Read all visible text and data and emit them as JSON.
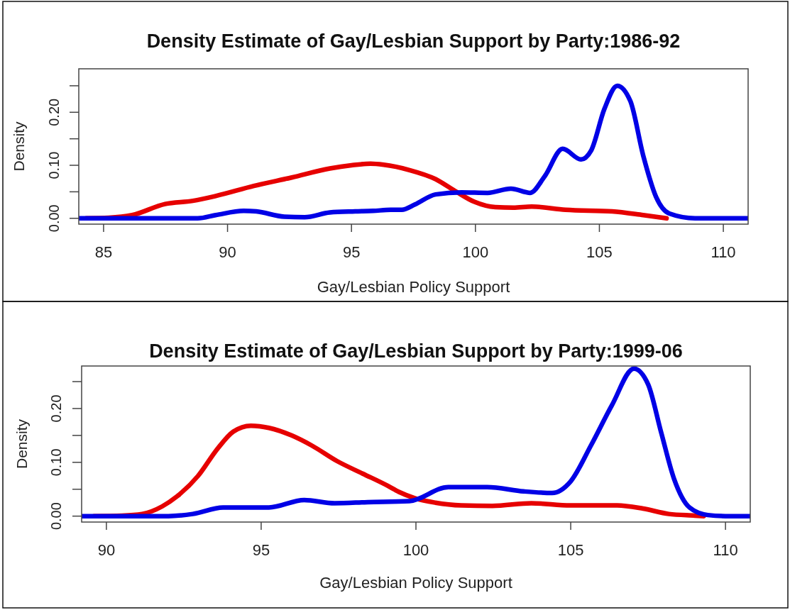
{
  "chart_data": [
    {
      "type": "line",
      "title": "Density Estimate of Gay/Lesbian Support by Party:1986-92",
      "xlabel": "Gay/Lesbian Policy Support",
      "ylabel": "Density",
      "xlim": [
        84,
        111
      ],
      "ylim": [
        -0.011,
        0.282
      ],
      "xticks": [
        85,
        90,
        95,
        100,
        105,
        110
      ],
      "yticks": [
        {
          "value": 0,
          "label": "0.00"
        },
        {
          "value": 0.05,
          "label": null
        },
        {
          "value": 0.1,
          "label": "0.10"
        },
        {
          "value": 0.15,
          "label": null
        },
        {
          "value": 0.2,
          "label": "0.20"
        },
        {
          "value": 0.25,
          "label": null
        }
      ],
      "series": [
        {
          "color": "#e60000",
          "x": [
            84.3,
            85.2,
            86.15,
            87.48,
            88.6,
            89.52,
            91.06,
            92.59,
            94.13,
            95.0,
            95.77,
            96.3,
            97.34,
            98.39,
            99.23,
            99.96,
            100.8,
            101.53,
            102.27,
            103.63,
            105.51,
            106.77,
            107.71
          ],
          "values": [
            0,
            0.001,
            0.006,
            0.027,
            0.033,
            0.042,
            0.061,
            0.077,
            0.094,
            0.1,
            0.103,
            0.101,
            0.091,
            0.074,
            0.05,
            0.031,
            0.021,
            0.02,
            0.022,
            0.016,
            0.013,
            0.006,
            0
          ]
        },
        {
          "color": "#0000e6",
          "x": [
            84,
            88.8,
            89.52,
            90.65,
            91.16,
            92.29,
            93.11,
            94.13,
            95.15,
            95.87,
            96.58,
            97.03,
            97.56,
            98.39,
            99.44,
            100.49,
            101.43,
            102.21,
            102.79,
            103.52,
            104.26,
            104.67,
            105.2,
            105.72,
            106.25,
            106.77,
            107.29,
            107.82,
            108.86,
            111
          ],
          "values": [
            0,
            0,
            0.006,
            0.014,
            0.013,
            0.003,
            0.002,
            0.011,
            0.013,
            0.014,
            0.016,
            0.016,
            0.026,
            0.045,
            0.049,
            0.048,
            0.056,
            0.048,
            0.079,
            0.131,
            0.111,
            0.128,
            0.206,
            0.25,
            0.221,
            0.118,
            0.04,
            0.009,
            0,
            0
          ]
        }
      ]
    },
    {
      "type": "line",
      "title": "Density Estimate of Gay/Lesbian Support by Party:1999-06",
      "xlabel": "Gay/Lesbian Policy Support",
      "ylabel": "Density",
      "xlim": [
        89.2,
        110.8
      ],
      "ylim": [
        -0.011,
        0.279
      ],
      "xticks": [
        90,
        95,
        100,
        105,
        110
      ],
      "yticks": [
        {
          "value": 0,
          "label": "0.00"
        },
        {
          "value": 0.05,
          "label": null
        },
        {
          "value": 0.1,
          "label": "0.10"
        },
        {
          "value": 0.15,
          "label": null
        },
        {
          "value": 0.2,
          "label": "0.20"
        },
        {
          "value": 0.25,
          "label": null
        }
      ],
      "series": [
        {
          "color": "#e60000",
          "x": [
            89.6,
            90.5,
            91.15,
            91.8,
            92.29,
            92.95,
            93.6,
            94.1,
            94.67,
            95.25,
            95.98,
            96.64,
            97.46,
            98.28,
            99.1,
            99.45,
            99.98,
            100.63,
            101.46,
            102.47,
            103.73,
            104.99,
            106.5,
            107.34,
            108.17,
            109.01,
            109.3
          ],
          "values": [
            0,
            0.001,
            0.004,
            0.018,
            0.037,
            0.074,
            0.126,
            0.157,
            0.168,
            0.164,
            0.15,
            0.131,
            0.102,
            0.079,
            0.056,
            0.045,
            0.033,
            0.025,
            0.02,
            0.019,
            0.024,
            0.02,
            0.02,
            0.014,
            0.004,
            0.001,
            0
          ]
        },
        {
          "color": "#0000e6",
          "x": [
            89.2,
            92.0,
            92.79,
            93.77,
            95.25,
            96.39,
            97.37,
            98.44,
            99.79,
            101.05,
            102.3,
            103.48,
            104.4,
            104.99,
            105.66,
            106.33,
            107.04,
            107.5,
            107.92,
            108.34,
            108.84,
            109.43,
            110.0,
            110.8
          ],
          "values": [
            0,
            0,
            0.004,
            0.016,
            0.016,
            0.03,
            0.024,
            0.026,
            0.028,
            0.054,
            0.054,
            0.046,
            0.043,
            0.064,
            0.132,
            0.206,
            0.274,
            0.245,
            0.156,
            0.069,
            0.016,
            0.002,
            0,
            0
          ]
        }
      ]
    }
  ]
}
